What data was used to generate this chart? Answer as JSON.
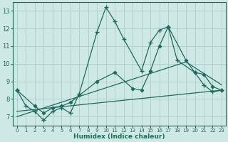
{
  "xlabel": "Humidex (Indice chaleur)",
  "bg_color": "#cde8e5",
  "grid_color": "#afd0cc",
  "line_color": "#1e6b5e",
  "xlim": [
    -0.5,
    23.5
  ],
  "ylim": [
    6.5,
    13.5
  ],
  "xticks": [
    0,
    1,
    2,
    3,
    4,
    5,
    6,
    7,
    8,
    9,
    10,
    11,
    12,
    13,
    14,
    15,
    16,
    17,
    18,
    19,
    20,
    21,
    22,
    23
  ],
  "yticks": [
    7,
    8,
    9,
    10,
    11,
    12,
    13
  ],
  "series1_x": [
    0,
    1,
    2,
    3,
    4,
    5,
    6,
    7,
    9,
    10,
    11,
    12,
    14,
    15,
    16,
    17,
    18,
    20,
    21,
    22,
    23
  ],
  "series1_y": [
    8.5,
    7.6,
    7.3,
    6.8,
    7.3,
    7.5,
    7.2,
    8.3,
    11.8,
    13.2,
    12.4,
    11.4,
    9.6,
    11.2,
    11.9,
    12.1,
    10.2,
    9.5,
    8.8,
    8.4,
    8.5
  ],
  "series2_x": [
    0,
    2,
    3,
    4,
    5,
    6,
    7,
    9,
    11,
    13,
    14,
    15,
    16,
    17,
    19,
    20,
    21,
    22,
    23
  ],
  "series2_y": [
    8.5,
    7.6,
    7.2,
    7.5,
    7.6,
    7.8,
    8.2,
    9.0,
    9.5,
    8.6,
    8.5,
    9.6,
    11.0,
    12.1,
    10.2,
    9.5,
    9.4,
    8.7,
    8.5
  ],
  "series3_x": [
    0,
    23
  ],
  "series3_y": [
    7.3,
    8.5
  ],
  "series4_x": [
    0,
    19,
    23
  ],
  "series4_y": [
    7.0,
    10.1,
    8.8
  ]
}
